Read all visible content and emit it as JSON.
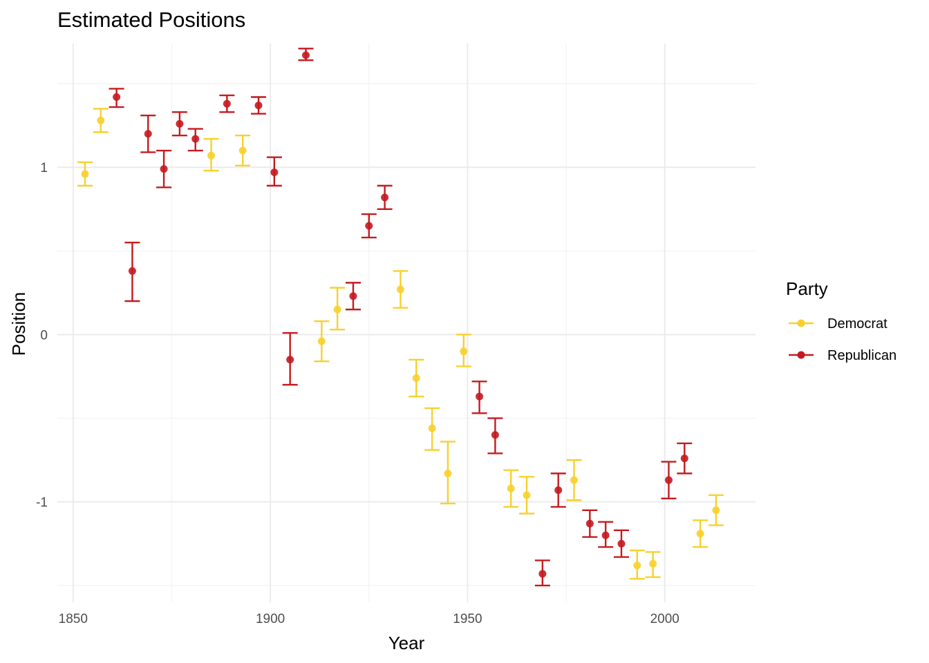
{
  "chart_data": {
    "type": "scatter",
    "title": "Estimated Positions",
    "xlabel": "Year",
    "ylabel": "Position",
    "xlim": [
      1846,
      2023
    ],
    "ylim": [
      -1.6,
      1.74
    ],
    "x_ticks": [
      1850,
      1900,
      1950,
      2000
    ],
    "y_ticks": [
      1,
      0,
      -1
    ],
    "x_tick_labels": [
      "1850",
      "1900",
      "1950",
      "2000"
    ],
    "y_tick_labels": [
      "1",
      "0",
      "-1"
    ],
    "grid": true,
    "legend_title": "Party",
    "legend_position": "right",
    "colors": {
      "Democrat": "#F7D02C",
      "Republican": "#C41A1F",
      "grid_major": "#EBEBEB",
      "grid_minor": "#F2F2F2"
    },
    "series": [
      {
        "name": "Democrat",
        "points": [
          {
            "x": 1853,
            "y": 0.96,
            "lo": 0.89,
            "hi": 1.03
          },
          {
            "x": 1857,
            "y": 1.28,
            "lo": 1.21,
            "hi": 1.35
          },
          {
            "x": 1885,
            "y": 1.07,
            "lo": 0.98,
            "hi": 1.17
          },
          {
            "x": 1893,
            "y": 1.1,
            "lo": 1.01,
            "hi": 1.19
          },
          {
            "x": 1913,
            "y": -0.04,
            "lo": -0.16,
            "hi": 0.08
          },
          {
            "x": 1917,
            "y": 0.15,
            "lo": 0.03,
            "hi": 0.28
          },
          {
            "x": 1933,
            "y": 0.27,
            "lo": 0.16,
            "hi": 0.38
          },
          {
            "x": 1937,
            "y": -0.26,
            "lo": -0.37,
            "hi": -0.15
          },
          {
            "x": 1941,
            "y": -0.56,
            "lo": -0.69,
            "hi": -0.44
          },
          {
            "x": 1945,
            "y": -0.83,
            "lo": -1.01,
            "hi": -0.64
          },
          {
            "x": 1949,
            "y": -0.1,
            "lo": -0.19,
            "hi": 0.0
          },
          {
            "x": 1961,
            "y": -0.92,
            "lo": -1.03,
            "hi": -0.81
          },
          {
            "x": 1965,
            "y": -0.96,
            "lo": -1.07,
            "hi": -0.85
          },
          {
            "x": 1977,
            "y": -0.87,
            "lo": -0.99,
            "hi": -0.75
          },
          {
            "x": 1993,
            "y": -1.38,
            "lo": -1.46,
            "hi": -1.29
          },
          {
            "x": 1997,
            "y": -1.37,
            "lo": -1.45,
            "hi": -1.3
          },
          {
            "x": 2009,
            "y": -1.19,
            "lo": -1.27,
            "hi": -1.11
          },
          {
            "x": 2013,
            "y": -1.05,
            "lo": -1.14,
            "hi": -0.96
          }
        ]
      },
      {
        "name": "Republican",
        "points": [
          {
            "x": 1861,
            "y": 1.42,
            "lo": 1.36,
            "hi": 1.47
          },
          {
            "x": 1865,
            "y": 0.38,
            "lo": 0.2,
            "hi": 0.55
          },
          {
            "x": 1869,
            "y": 1.2,
            "lo": 1.09,
            "hi": 1.31
          },
          {
            "x": 1873,
            "y": 0.99,
            "lo": 0.88,
            "hi": 1.1
          },
          {
            "x": 1877,
            "y": 1.26,
            "lo": 1.19,
            "hi": 1.33
          },
          {
            "x": 1881,
            "y": 1.17,
            "lo": 1.1,
            "hi": 1.23
          },
          {
            "x": 1889,
            "y": 1.38,
            "lo": 1.33,
            "hi": 1.43
          },
          {
            "x": 1897,
            "y": 1.37,
            "lo": 1.32,
            "hi": 1.42
          },
          {
            "x": 1901,
            "y": 0.97,
            "lo": 0.89,
            "hi": 1.06
          },
          {
            "x": 1905,
            "y": -0.15,
            "lo": -0.3,
            "hi": 0.01
          },
          {
            "x": 1909,
            "y": 1.67,
            "lo": 1.64,
            "hi": 1.71
          },
          {
            "x": 1921,
            "y": 0.23,
            "lo": 0.15,
            "hi": 0.31
          },
          {
            "x": 1925,
            "y": 0.65,
            "lo": 0.58,
            "hi": 0.72
          },
          {
            "x": 1929,
            "y": 0.82,
            "lo": 0.75,
            "hi": 0.89
          },
          {
            "x": 1953,
            "y": -0.37,
            "lo": -0.47,
            "hi": -0.28
          },
          {
            "x": 1957,
            "y": -0.6,
            "lo": -0.71,
            "hi": -0.5
          },
          {
            "x": 1969,
            "y": -1.43,
            "lo": -1.5,
            "hi": -1.35
          },
          {
            "x": 1973,
            "y": -0.93,
            "lo": -1.03,
            "hi": -0.83
          },
          {
            "x": 1981,
            "y": -1.13,
            "lo": -1.21,
            "hi": -1.05
          },
          {
            "x": 1985,
            "y": -1.2,
            "lo": -1.27,
            "hi": -1.12
          },
          {
            "x": 1989,
            "y": -1.25,
            "lo": -1.33,
            "hi": -1.17
          },
          {
            "x": 2001,
            "y": -0.87,
            "lo": -0.98,
            "hi": -0.76
          },
          {
            "x": 2005,
            "y": -0.74,
            "lo": -0.83,
            "hi": -0.65
          }
        ]
      }
    ]
  }
}
